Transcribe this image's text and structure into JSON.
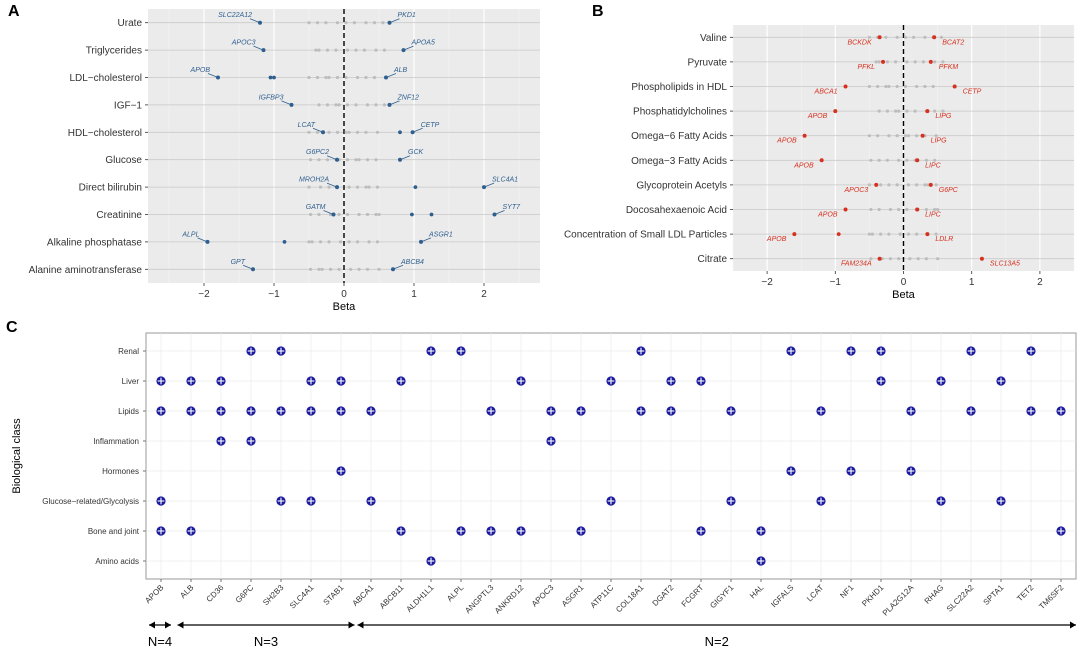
{
  "colors": {
    "panel_bg": "#ebebeb",
    "grid_major": "#ffffff",
    "blue": "#2f5f8f",
    "red": "#d6301f",
    "grey_point": "#b5b5b5",
    "navy": "#1a1a9e"
  },
  "chart_data": [
    {
      "panel": "A",
      "type": "scatter",
      "xlabel": "Beta",
      "xlim": [
        -2.8,
        2.8
      ],
      "xticks": [
        -2,
        -1,
        0,
        1,
        2
      ],
      "categories": [
        "Urate",
        "Triglycerides",
        "LDL−cholesterol",
        "IGF−1",
        "HDL−cholesterol",
        "Glucose",
        "Direct bilirubin",
        "Creatinine",
        "Alkaline phosphatase",
        "Alanine aminotransferase"
      ],
      "labeled_points": [
        {
          "cat": "Urate",
          "gene": "SLC22A12",
          "beta": -1.2
        },
        {
          "cat": "Urate",
          "gene": "PKD1",
          "beta": 0.65
        },
        {
          "cat": "Triglycerides",
          "gene": "APOC3",
          "beta": -1.15
        },
        {
          "cat": "Triglycerides",
          "gene": "APOA5",
          "beta": 0.85
        },
        {
          "cat": "LDL−cholesterol",
          "gene": "APOB",
          "beta": -1.8
        },
        {
          "cat": "LDL−cholesterol",
          "gene": "ALB",
          "beta": 0.6
        },
        {
          "cat": "IGF−1",
          "gene": "IGFBP3",
          "beta": -0.75
        },
        {
          "cat": "IGF−1",
          "gene": "ZNF12",
          "beta": 0.65
        },
        {
          "cat": "HDL−cholesterol",
          "gene": "LCAT",
          "beta": -0.3
        },
        {
          "cat": "HDL−cholesterol",
          "gene": "CETP",
          "beta": 0.98
        },
        {
          "cat": "Glucose",
          "gene": "G6PC2",
          "beta": -0.1
        },
        {
          "cat": "Glucose",
          "gene": "GCK",
          "beta": 0.8
        },
        {
          "cat": "Direct bilirubin",
          "gene": "MROH2A",
          "beta": -0.1
        },
        {
          "cat": "Direct bilirubin",
          "gene": "SLC4A1",
          "beta": 2.0
        },
        {
          "cat": "Creatinine",
          "gene": "GATM",
          "beta": -0.15
        },
        {
          "cat": "Creatinine",
          "gene": "SYT7",
          "beta": 2.15
        },
        {
          "cat": "Alkaline phosphatase",
          "gene": "ALPL",
          "beta": -1.95
        },
        {
          "cat": "Alkaline phosphatase",
          "gene": "ASGR1",
          "beta": 1.1
        },
        {
          "cat": "Alanine aminotransferase",
          "gene": "GPT",
          "beta": -1.3
        },
        {
          "cat": "Alanine aminotransferase",
          "gene": "ABCB4",
          "beta": 0.7
        }
      ],
      "extra_blue_points": [
        {
          "cat": "LDL−cholesterol",
          "beta": -1.05
        },
        {
          "cat": "LDL−cholesterol",
          "beta": -1.0
        },
        {
          "cat": "HDL−cholesterol",
          "beta": 0.8
        },
        {
          "cat": "Direct bilirubin",
          "beta": 1.02
        },
        {
          "cat": "Creatinine",
          "beta": 0.97
        },
        {
          "cat": "Creatinine",
          "beta": 1.25
        },
        {
          "cat": "Alkaline phosphatase",
          "beta": -0.85
        }
      ]
    },
    {
      "panel": "B",
      "type": "scatter",
      "xlabel": "Beta",
      "xlim": [
        -2.5,
        2.5
      ],
      "xticks": [
        -2,
        -1,
        0,
        1,
        2
      ],
      "categories": [
        "Valine",
        "Pyruvate",
        "Phospholipids in HDL",
        "Phosphatidylcholines",
        "Omega−6 Fatty Acids",
        "Omega−3 Fatty Acids",
        "Glycoprotein Acetyls",
        "Docosahexaenoic Acid",
        "Concentration of Small LDL Particles",
        "Citrate"
      ],
      "labeled_points": [
        {
          "cat": "Valine",
          "gene": "BCKDK",
          "beta": -0.35
        },
        {
          "cat": "Valine",
          "gene": "BCAT2",
          "beta": 0.45
        },
        {
          "cat": "Pyruvate",
          "gene": "PFKL",
          "beta": -0.3
        },
        {
          "cat": "Pyruvate",
          "gene": "PFKM",
          "beta": 0.4
        },
        {
          "cat": "Phospholipids in HDL",
          "gene": "ABCA1",
          "beta": -0.85
        },
        {
          "cat": "Phospholipids in HDL",
          "gene": "CETP",
          "beta": 0.75
        },
        {
          "cat": "Phosphatidylcholines",
          "gene": "APOB",
          "beta": -1.0
        },
        {
          "cat": "Phosphatidylcholines",
          "gene": "LIPG",
          "beta": 0.35
        },
        {
          "cat": "Omega−6 Fatty Acids",
          "gene": "APOB",
          "beta": -1.45
        },
        {
          "cat": "Omega−6 Fatty Acids",
          "gene": "LIPG",
          "beta": 0.28
        },
        {
          "cat": "Omega−3 Fatty Acids",
          "gene": "APOB",
          "beta": -1.2
        },
        {
          "cat": "Omega−3 Fatty Acids",
          "gene": "LIPC",
          "beta": 0.2
        },
        {
          "cat": "Glycoprotein Acetyls",
          "gene": "APOC3",
          "beta": -0.4
        },
        {
          "cat": "Glycoprotein Acetyls",
          "gene": "G6PC",
          "beta": 0.4
        },
        {
          "cat": "Docosahexaenoic Acid",
          "gene": "APOB",
          "beta": -0.85
        },
        {
          "cat": "Docosahexaenoic Acid",
          "gene": "LIPC",
          "beta": 0.2
        },
        {
          "cat": "Concentration of Small LDL Particles",
          "gene": "APOB",
          "beta": -1.6
        },
        {
          "cat": "Concentration of Small LDL Particles",
          "gene": "LDLR",
          "beta": 0.35
        },
        {
          "cat": "Citrate",
          "gene": "FAM234A",
          "beta": -0.35
        },
        {
          "cat": "Citrate",
          "gene": "SLC13A5",
          "beta": 1.15
        }
      ],
      "extra_red_points": [
        {
          "cat": "Concentration of Small LDL Particles",
          "beta": -0.95
        }
      ]
    },
    {
      "panel": "C",
      "type": "scatter",
      "ylabel": "Biological class",
      "categories_y": [
        "Renal",
        "Liver",
        "Lipids",
        "Inflammation",
        "Hormones",
        "Glucose−related/Glycolysis",
        "Bone and joint",
        "Amino acids"
      ],
      "genes_x": [
        "APOB",
        "ALB",
        "CD36",
        "G6PC",
        "SH2B3",
        "SLC4A1",
        "STAB1",
        "ABCA1",
        "ABCB11",
        "ALDH1L1",
        "ALPL",
        "ANGPTL3",
        "ANKRD12",
        "APOC3",
        "ASGR1",
        "ATP11C",
        "COL18A1",
        "DGAT2",
        "FCGRT",
        "GIGYF1",
        "HAL",
        "IGFALS",
        "LCAT",
        "NF1",
        "PKHD1",
        "PLA2G12A",
        "RHAG",
        "SLC22A2",
        "SPTA1",
        "TET2",
        "TM6SF2"
      ],
      "membership": {
        "APOB": [
          "Liver",
          "Lipids",
          "Glucose−related/Glycolysis",
          "Bone and joint"
        ],
        "ALB": [
          "Liver",
          "Lipids",
          "Bone and joint"
        ],
        "CD36": [
          "Liver",
          "Lipids",
          "Inflammation"
        ],
        "G6PC": [
          "Renal",
          "Lipids",
          "Inflammation"
        ],
        "SH2B3": [
          "Renal",
          "Lipids",
          "Glucose−related/Glycolysis"
        ],
        "SLC4A1": [
          "Liver",
          "Lipids",
          "Glucose−related/Glycolysis"
        ],
        "STAB1": [
          "Liver",
          "Lipids",
          "Hormones"
        ],
        "ABCA1": [
          "Lipids",
          "Glucose−related/Glycolysis"
        ],
        "ABCB11": [
          "Liver",
          "Bone and joint"
        ],
        "ALDH1L1": [
          "Renal",
          "Amino acids"
        ],
        "ALPL": [
          "Renal",
          "Bone and joint"
        ],
        "ANGPTL3": [
          "Lipids",
          "Bone and joint"
        ],
        "ANKRD12": [
          "Liver",
          "Bone and joint"
        ],
        "APOC3": [
          "Lipids",
          "Inflammation"
        ],
        "ASGR1": [
          "Lipids",
          "Bone and joint"
        ],
        "ATP11C": [
          "Liver",
          "Glucose−related/Glycolysis"
        ],
        "COL18A1": [
          "Renal",
          "Lipids"
        ],
        "DGAT2": [
          "Liver",
          "Lipids"
        ],
        "FCGRT": [
          "Liver",
          "Bone and joint"
        ],
        "GIGYF1": [
          "Lipids",
          "Glucose−related/Glycolysis"
        ],
        "HAL": [
          "Bone and joint",
          "Amino acids"
        ],
        "IGFALS": [
          "Renal",
          "Hormones"
        ],
        "LCAT": [
          "Lipids",
          "Glucose−related/Glycolysis"
        ],
        "NF1": [
          "Renal",
          "Hormones"
        ],
        "PKHD1": [
          "Renal",
          "Liver"
        ],
        "PLA2G12A": [
          "Lipids",
          "Hormones"
        ],
        "RHAG": [
          "Liver",
          "Glucose−related/Glycolysis"
        ],
        "SLC22A2": [
          "Renal",
          "Lipids"
        ],
        "SPTA1": [
          "Liver",
          "Glucose−related/Glycolysis"
        ],
        "TET2": [
          "Renal",
          "Lipids"
        ],
        "TM6SF2": [
          "Lipids",
          "Bone and joint"
        ]
      },
      "groups": [
        {
          "label": "N=4",
          "from": "APOB",
          "to": "APOB"
        },
        {
          "label": "N=3",
          "from": "ALB",
          "to": "STAB1"
        },
        {
          "label": "N=2",
          "from": "ABCA1",
          "to": "TM6SF2"
        }
      ]
    }
  ]
}
